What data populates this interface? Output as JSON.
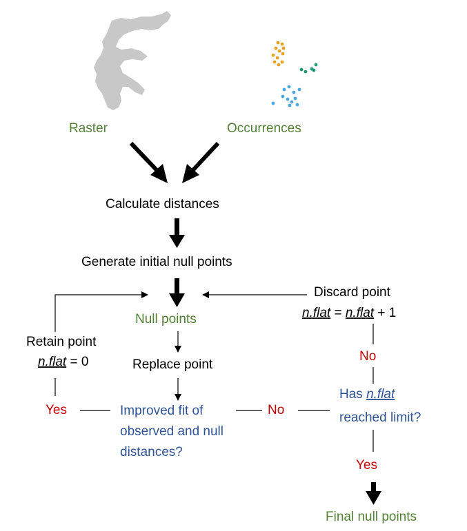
{
  "inputs": {
    "raster_label": "Raster",
    "occurrences_label": "Occurrences"
  },
  "steps": {
    "calculate": "Calculate distances",
    "generate": "Generate initial null points",
    "null_points": "Null points",
    "replace": "Replace point",
    "improved_line1": "Improved fit of",
    "improved_line2": "observed and null",
    "improved_line3": "distances?",
    "has_line1_prefix": "Has ",
    "has_line1_var": "n.flat",
    "has_line2": "reached limit?",
    "final": "Final null points"
  },
  "retain": {
    "title": "Retain point",
    "eq_var": "n.flat",
    "eq_rest": " = 0"
  },
  "discard": {
    "title": "Discard point",
    "eq_var1": "n.flat",
    "eq_mid": " = ",
    "eq_var2": "n.flat",
    "eq_rest": " + 1"
  },
  "answers": {
    "yes_left": "Yes",
    "no_middle": "No",
    "no_right": "No",
    "yes_bottom": "Yes"
  },
  "colors": {
    "green": "#538135",
    "blue": "#2f5496",
    "red": "#c00000",
    "raster_gray": "#c8c8c8",
    "occ_orange": "#e8a020",
    "occ_teal": "#1f9a6c",
    "occ_lightblue": "#4aa8e0"
  }
}
